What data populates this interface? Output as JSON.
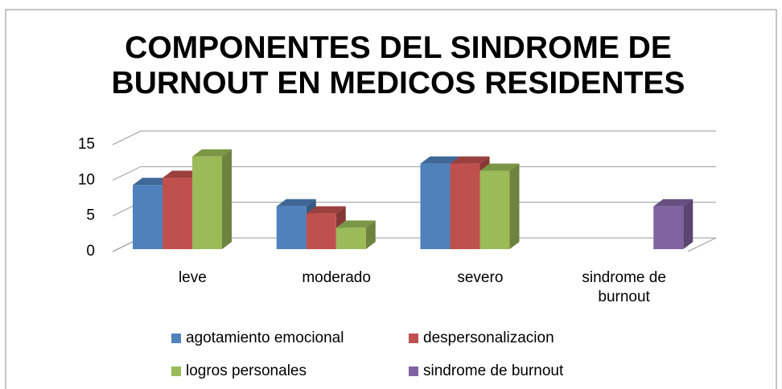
{
  "chart_data": {
    "type": "bar3d",
    "title": "COMPONENTES DEL SINDROME DE BURNOUT EN MEDICOS RESIDENTES",
    "categories": [
      "leve",
      "moderado",
      "severo",
      "sindrome de burnout"
    ],
    "series": [
      {
        "name": "agotamiento emocional",
        "color": "#4f81bd",
        "values": [
          9,
          6,
          12,
          null
        ]
      },
      {
        "name": "despersonalizacion",
        "color": "#c0504d",
        "values": [
          10,
          5,
          12,
          null
        ]
      },
      {
        "name": "logros personales",
        "color": "#9bbb59",
        "values": [
          13,
          3,
          11,
          null
        ]
      },
      {
        "name": "sindrome de burnout",
        "color": "#8064a2",
        "values": [
          null,
          null,
          null,
          6
        ]
      }
    ],
    "ylim": [
      0,
      15
    ],
    "yticks": [
      0,
      5,
      10,
      15
    ],
    "grid": true
  }
}
